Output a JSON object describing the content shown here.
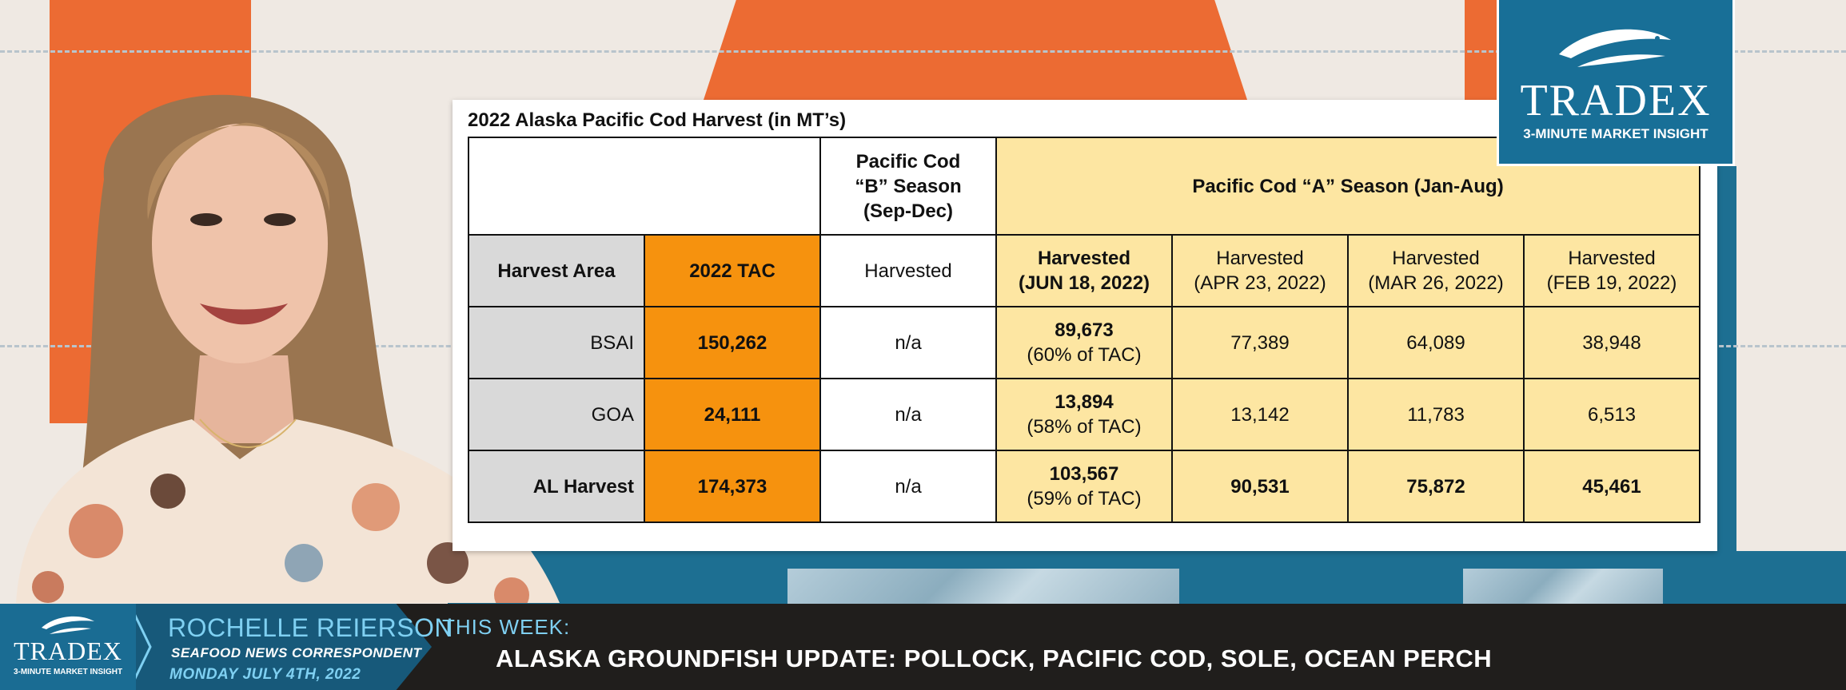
{
  "table": {
    "title": "2022 Alaska Pacific Cod Harvest (in MT’s)",
    "b_season_header": [
      "Pacific Cod",
      "“B” Season",
      "(Sep-Dec)"
    ],
    "a_season_header": "Pacific Cod “A” Season (Jan-Aug)",
    "columns": {
      "area": "Harvest Area",
      "tac": "2022 TAC",
      "b_harvested": "Harvested",
      "jun18": [
        "Harvested",
        "(JUN 18, 2022)"
      ],
      "apr23": [
        "Harvested",
        "(APR 23, 2022)"
      ],
      "mar26": [
        "Harvested",
        "(MAR 26, 2022)"
      ],
      "feb19": [
        "Harvested",
        "(FEB 19, 2022)"
      ]
    },
    "rows": [
      {
        "area": "BSAI",
        "tac": "150,262",
        "b_harvested": "n/a",
        "jun18": "89,673",
        "jun18_pct": "(60% of TAC)",
        "apr23": "77,389",
        "mar26": "64,089",
        "feb19": "38,948"
      },
      {
        "area": "GOA",
        "tac": "24,111",
        "b_harvested": "n/a",
        "jun18": "13,894",
        "jun18_pct": "(58% of TAC)",
        "apr23": "13,142",
        "mar26": "11,783",
        "feb19": "6,513"
      },
      {
        "area": "AL Harvest",
        "tac": "174,373",
        "b_harvested": "n/a",
        "jun18": "103,567",
        "jun18_pct": "(59% of TAC)",
        "apr23": "90,531",
        "mar26": "75,872",
        "feb19": "45,461"
      }
    ]
  },
  "logo": {
    "wordmark": "TRADEX",
    "tagline": "3-MINUTE MARKET INSIGHT"
  },
  "lower_third": {
    "logo_wordmark": "TRADEX",
    "logo_tagline": "3-MINUTE MARKET INSIGHT",
    "presenter_name": "ROCHELLE REIERSON",
    "presenter_role": "SEAFOOD NEWS CORRESPONDENT",
    "date": "MONDAY JULY 4TH, 2022",
    "this_week_label": "THIS WEEK:",
    "headline": "ALASKA GROUNDFISH UPDATE: POLLOCK, PACIFIC COD, SOLE, OCEAN PERCH"
  },
  "colors": {
    "orange_bg": "#ec6b33",
    "blue_brand": "#1d6f92",
    "tac_orange": "#f6920e",
    "a_season_yellow": "#fde6a2",
    "area_gray": "#d9d9d9",
    "accent_cyan": "#7fd0f2"
  }
}
